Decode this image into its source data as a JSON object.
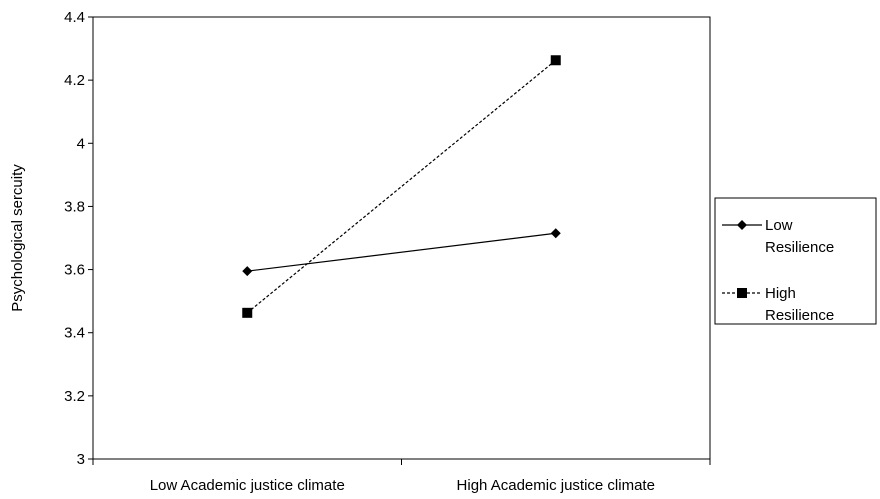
{
  "chart_data": {
    "type": "line",
    "title": "",
    "xlabel": "",
    "ylabel": "Psychological sercuity",
    "categories": [
      "Low Academic justice climate",
      "High Academic justice climate"
    ],
    "ylim": [
      3,
      4.4
    ],
    "yticks": [
      "3",
      "3.2",
      "3.4",
      "3.6",
      "3.8",
      "4",
      "4.2",
      "4.4"
    ],
    "grid": false,
    "legend_position": "right",
    "series": [
      {
        "name": "Low Resilience",
        "legend_lines": [
          "Low",
          "Resilience"
        ],
        "values": [
          3.595,
          3.715
        ],
        "marker": "diamond",
        "line_style": "solid",
        "color": "#000000"
      },
      {
        "name": "High Resilience",
        "legend_lines": [
          "High",
          "Resilience"
        ],
        "values": [
          3.463,
          4.263
        ],
        "marker": "square",
        "line_style": "dashed",
        "color": "#000000"
      }
    ]
  }
}
